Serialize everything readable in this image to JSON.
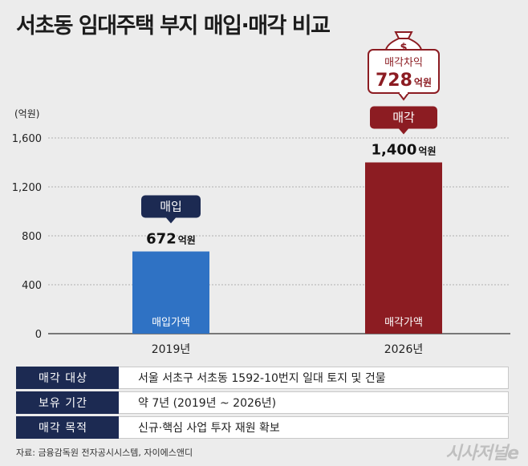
{
  "title": "서초동 임대주택 부지 매입·매각 비교",
  "chart_data": {
    "type": "bar",
    "unit_label": "(억원)",
    "categories": [
      "2019년",
      "2026년"
    ],
    "values": [
      672,
      1400
    ],
    "ylim": [
      0,
      1600
    ],
    "yticks": [
      "0",
      "400",
      "800",
      "1,200",
      "1,600"
    ],
    "ytick_values": [
      0,
      400,
      800,
      1200,
      1600
    ],
    "value_labels": [
      "672",
      "1,400"
    ],
    "value_unit": "억원",
    "bar_inner_labels": [
      "매입가액",
      "매각가액"
    ],
    "tags": [
      "매입",
      "매각"
    ],
    "colors": [
      "#2f72c4",
      "#8c1c22"
    ],
    "grid": true,
    "difference": {
      "label": "매각차익",
      "value": "728",
      "unit": "억원"
    }
  },
  "info": [
    {
      "key": "매각 대상",
      "value": "서울 서초구 서초동 1592-10번지 일대 토지 및 건물"
    },
    {
      "key": "보유 기간",
      "value": "약 7년 (2019년 ~ 2026년)"
    },
    {
      "key": "매각 목적",
      "value": "신규·핵심 사업 투자 재원 확보"
    }
  ],
  "source": "자료: 금융감독원 전자공시시스템, 자이에스앤디",
  "brand": "시사저널e",
  "icons": {
    "moneybag": "money-bag-icon"
  }
}
